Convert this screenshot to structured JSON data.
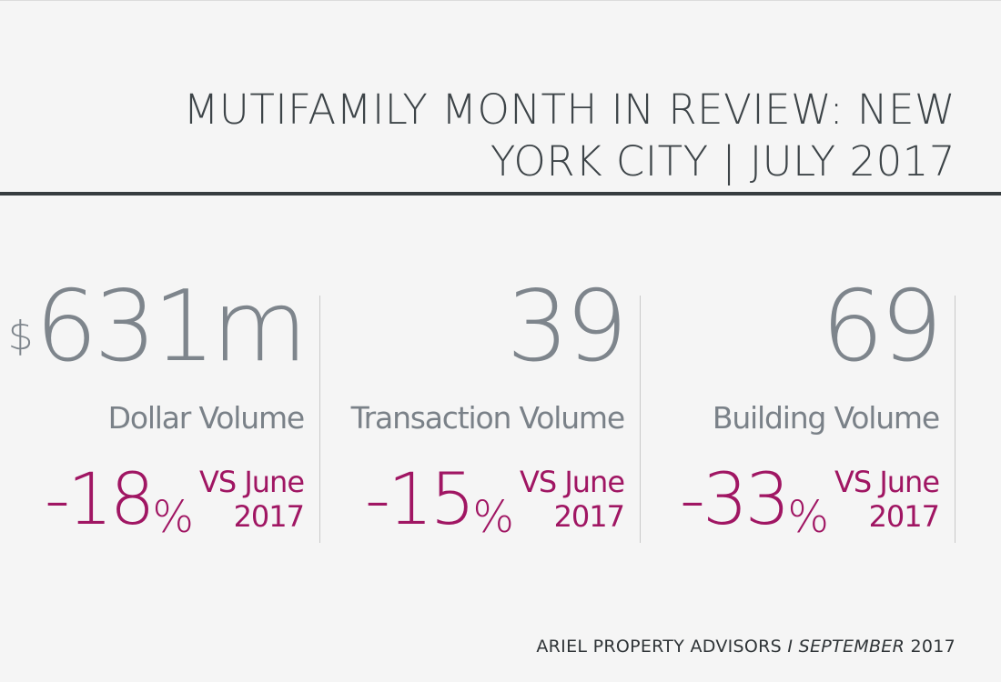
{
  "header": {
    "title_line1": "MUTIFAMILY MONTH IN REVIEW: NEW",
    "title_line2": "YORK CITY | JULY 2017"
  },
  "stats": [
    {
      "prefix": "$",
      "value": "631m",
      "label": "Dollar Volume",
      "change": "-18",
      "percent_sign": "%",
      "comparison_line1": "VS June",
      "comparison_line2": "2017"
    },
    {
      "prefix": "",
      "value": "39",
      "label": "Transaction Volume",
      "change": "-15",
      "percent_sign": "%",
      "comparison_line1": "VS June",
      "comparison_line2": "2017"
    },
    {
      "prefix": "",
      "value": "69",
      "label": "Building Volume",
      "change": "-33",
      "percent_sign": "%",
      "comparison_line1": "VS June",
      "comparison_line2": "2017"
    }
  ],
  "footer": {
    "company": "ARIEL PROPERTY ADVISORS",
    "separator": "I",
    "month": "SEPTEMBER",
    "year": "2017"
  },
  "colors": {
    "background": "#f5f5f5",
    "title_text": "#3d4448",
    "stat_gray": "#7e858c",
    "accent_magenta": "#a01663",
    "rule": "#363c3f"
  }
}
